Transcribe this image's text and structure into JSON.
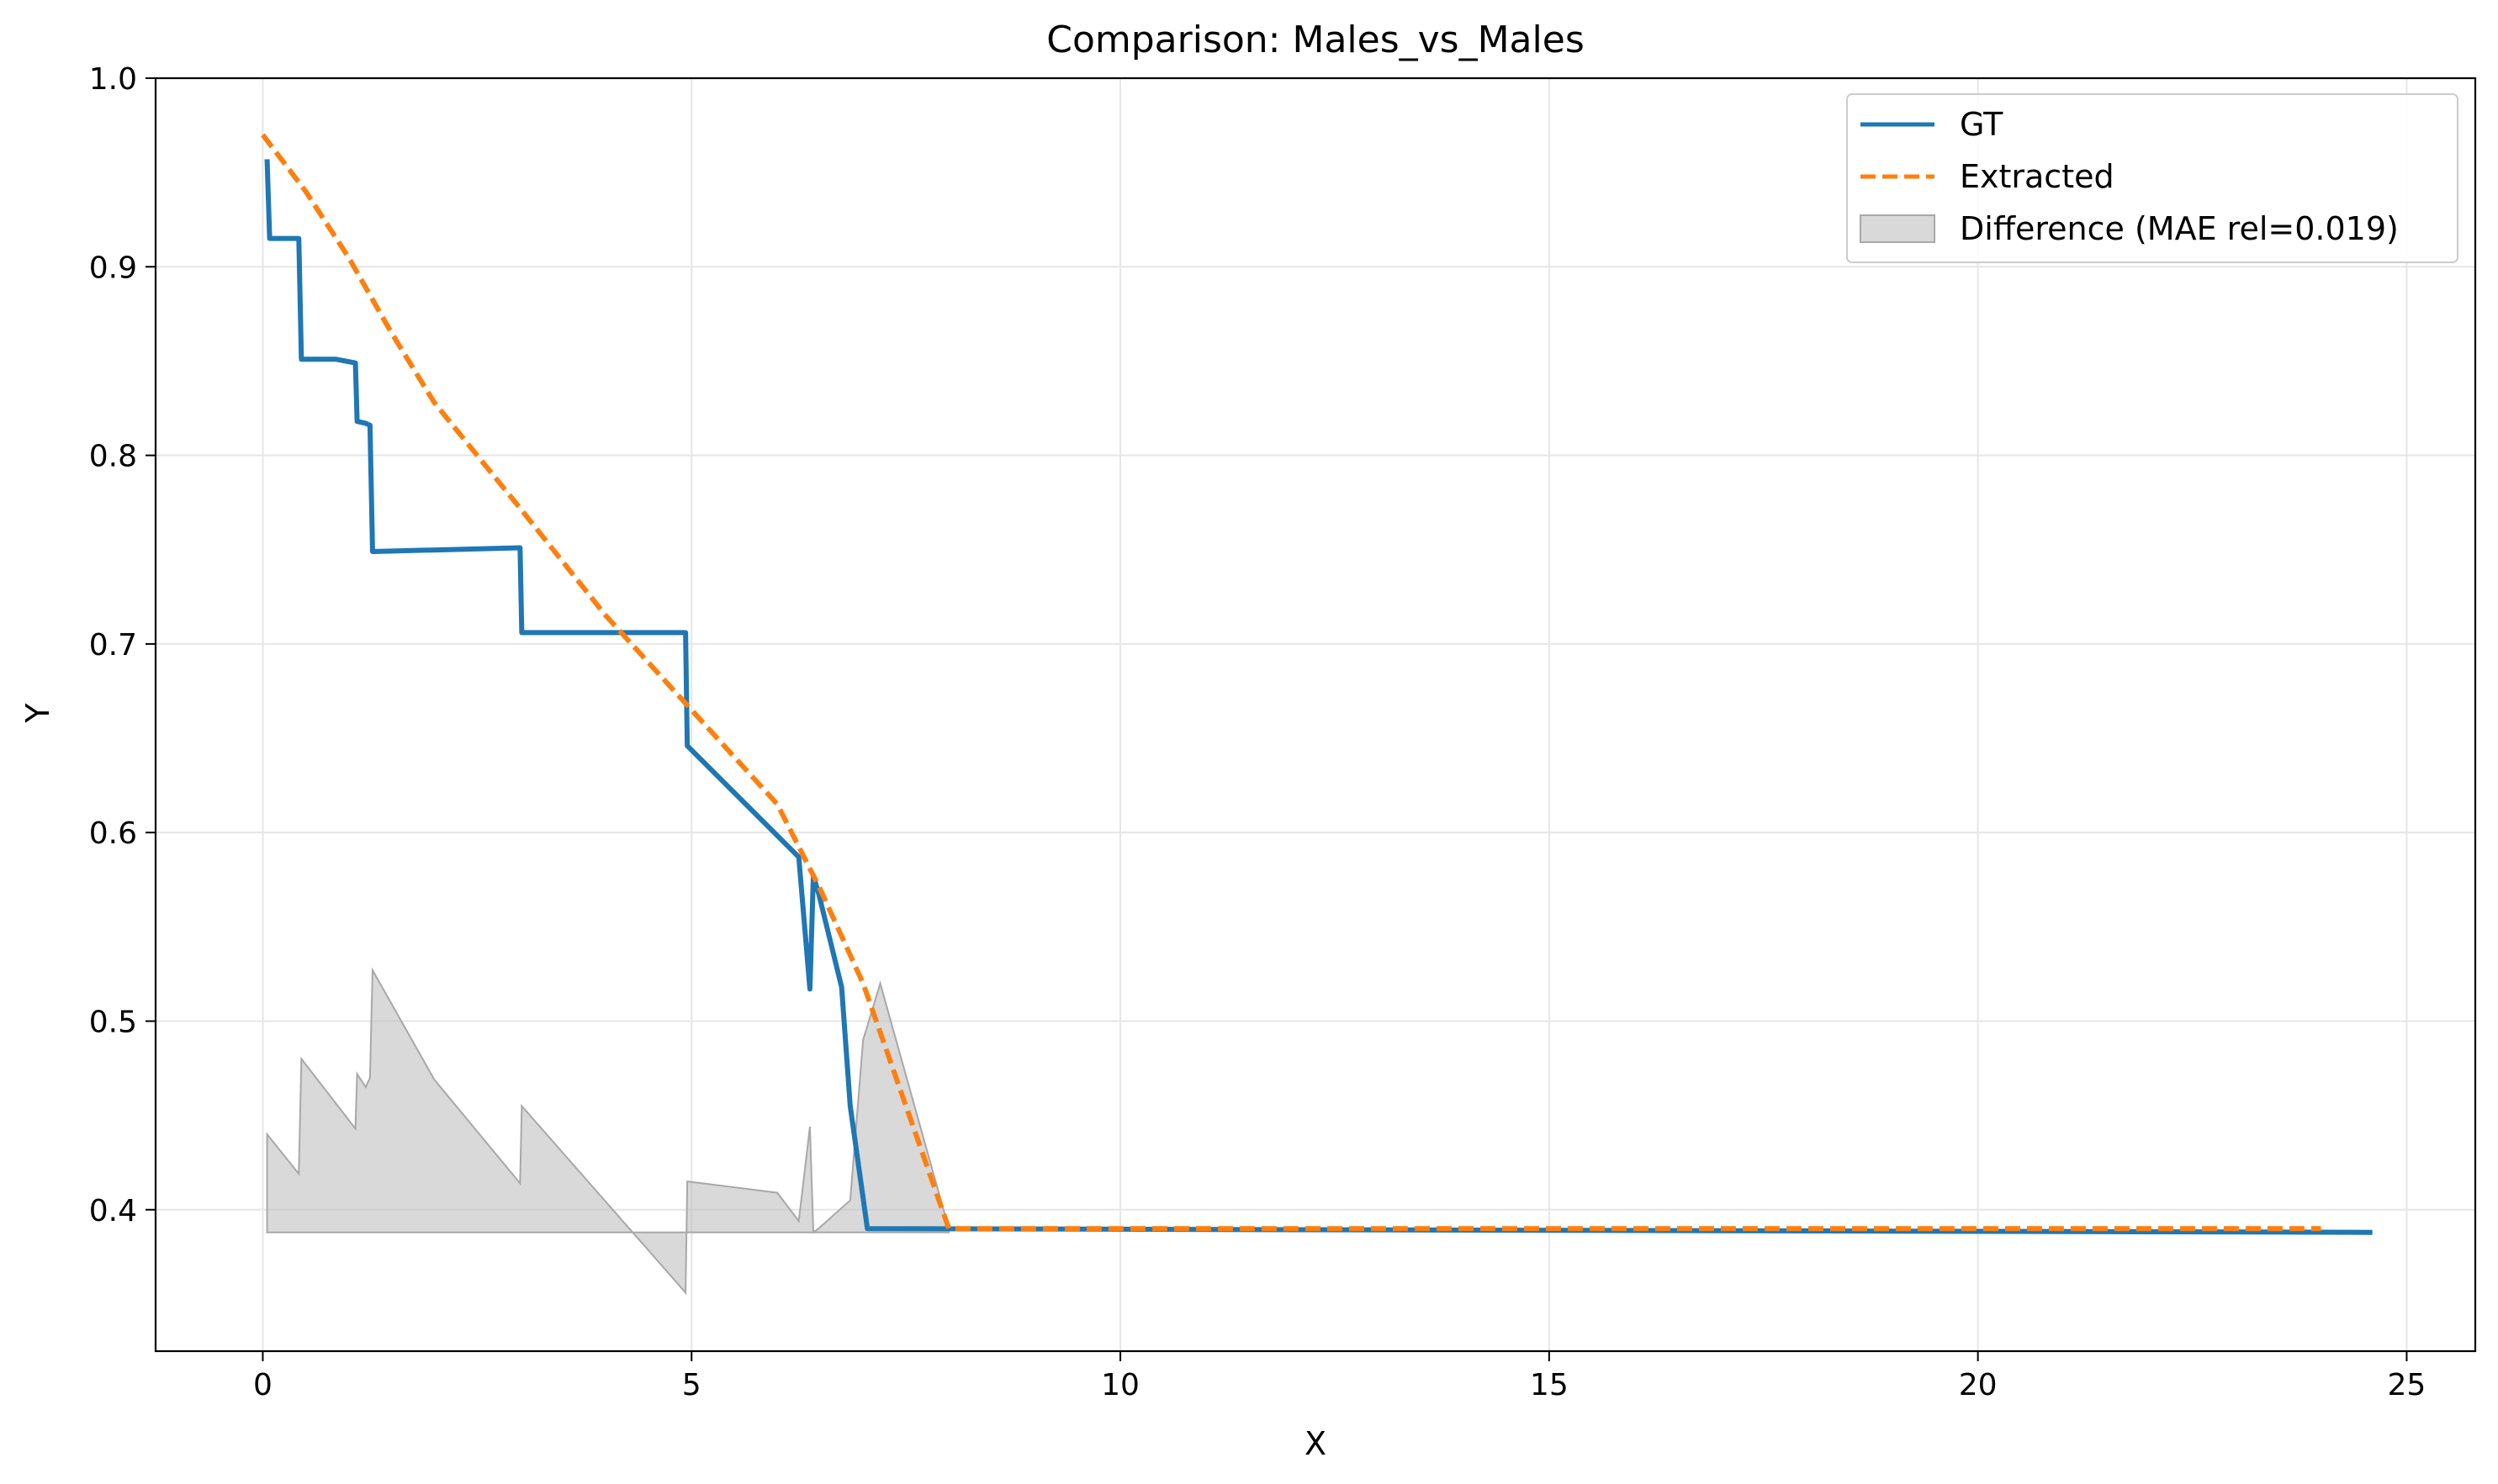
{
  "chart_data": {
    "type": "line",
    "title": "Comparison: Males_vs_Males",
    "xlabel": "X",
    "ylabel": "Y",
    "xlim": [
      -1.25,
      25.8
    ],
    "ylim": [
      0.325,
      1.0
    ],
    "xticks": [
      0,
      5,
      10,
      15,
      20,
      25
    ],
    "yticks": [
      0.4,
      0.5,
      0.6,
      0.7,
      0.8,
      0.9,
      1.0
    ],
    "grid": true,
    "legend_position": "top-right",
    "colors": {
      "gt": "#1f77b4",
      "extracted": "#ff7f0e",
      "difference": "#bfbfbf"
    },
    "series": [
      {
        "name": "GT",
        "style": "solid",
        "x": [
          0.05,
          0.08,
          0.42,
          0.45,
          0.85,
          1.08,
          1.1,
          1.2,
          1.25,
          1.28,
          3.0,
          3.02,
          4.93,
          4.95,
          6.25,
          6.38,
          6.42,
          6.48,
          6.75,
          6.85,
          7.05,
          24.6
        ],
        "y": [
          0.957,
          0.915,
          0.915,
          0.851,
          0.851,
          0.849,
          0.818,
          0.817,
          0.816,
          0.749,
          0.751,
          0.706,
          0.706,
          0.646,
          0.587,
          0.517,
          0.577,
          0.568,
          0.518,
          0.455,
          0.39,
          0.388
        ]
      },
      {
        "name": "Extracted",
        "style": "dashed",
        "x": [
          0.0,
          0.5,
          1.0,
          1.5,
          2.0,
          3.0,
          4.0,
          5.0,
          6.0,
          6.5,
          7.0,
          7.5,
          8.0,
          24.0
        ],
        "y": [
          0.97,
          0.94,
          0.905,
          0.865,
          0.828,
          0.772,
          0.715,
          0.665,
          0.615,
          0.57,
          0.52,
          0.455,
          0.39,
          0.39
        ]
      }
    ],
    "difference": {
      "name": "Difference (MAE rel=0.019)",
      "baseline": 0.388,
      "x": [
        0.05,
        0.42,
        0.45,
        1.08,
        1.1,
        1.2,
        1.25,
        1.28,
        2.0,
        3.0,
        3.02,
        4.93,
        4.95,
        6.0,
        6.25,
        6.38,
        6.42,
        6.48,
        6.85,
        7.0,
        7.2,
        8.0
      ],
      "y": [
        0.44,
        0.419,
        0.48,
        0.443,
        0.472,
        0.465,
        0.47,
        0.527,
        0.469,
        0.414,
        0.455,
        0.356,
        0.415,
        0.409,
        0.394,
        0.444,
        0.388,
        0.39,
        0.405,
        0.49,
        0.52,
        0.39
      ]
    }
  }
}
